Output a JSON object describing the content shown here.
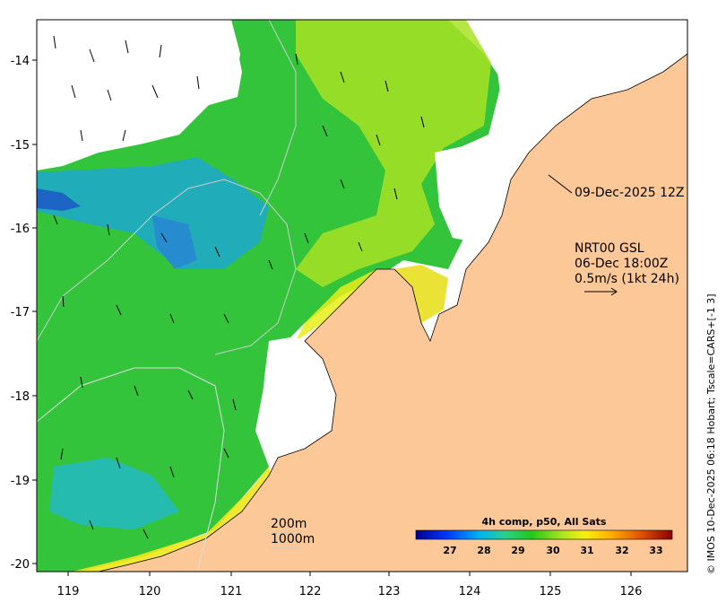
{
  "map": {
    "x_ticks": [
      "119",
      "120",
      "121",
      "122",
      "123",
      "124",
      "125",
      "126"
    ],
    "y_ticks": [
      "-14",
      "-15",
      "-16",
      "-17",
      "-18",
      "-19",
      "-20"
    ],
    "lon_range": [
      118.6,
      126.75
    ],
    "lat_range": [
      -20.1,
      -13.5
    ]
  },
  "annotations": {
    "track_date": "09-Dec-2025 12Z",
    "product": "NRT00 GSL",
    "valid_time": "06-Dec 18:00Z",
    "vector_scale": "0.5m/s (1kt 24h)",
    "contour_200": "200m",
    "contour_1000": "1000m",
    "credit": "© IMOS 10-Dec-2025 06:18 Hobart; Tscale=CARS+[-1 3]"
  },
  "colorbar": {
    "title": "4h comp, p50, All Sats",
    "ticks": [
      "27",
      "28",
      "29",
      "30",
      "31",
      "32",
      "33"
    ],
    "range": [
      26.2,
      33.5
    ]
  },
  "colors": {
    "land": "#fdc898",
    "ocean_mid": "#2ec23a",
    "ocean_warm": "#b4e81e",
    "ocean_cool": "#1fa6cf",
    "cloud": "#ffffff"
  }
}
